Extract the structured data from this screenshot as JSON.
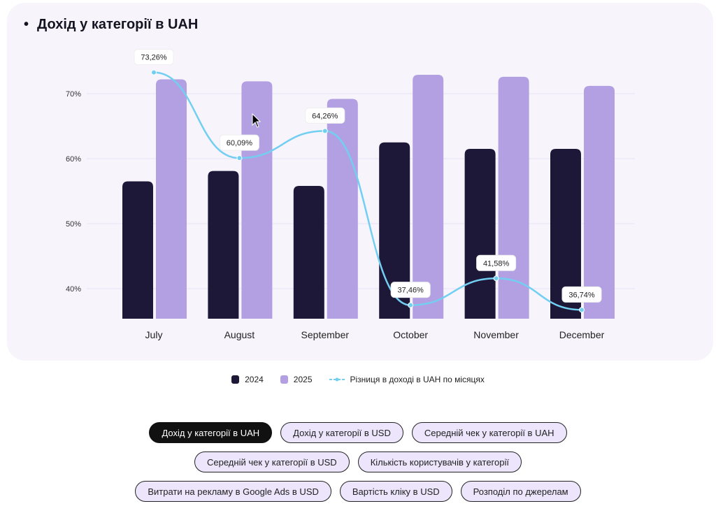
{
  "chart_data": {
    "type": "bar",
    "title": "Дохід у категорії в UAH",
    "categories": [
      "July",
      "August",
      "September",
      "October",
      "November",
      "December"
    ],
    "series": [
      {
        "name": "2024",
        "type": "bar",
        "color": "#1e1838",
        "values": [
          56.5,
          58.1,
          55.8,
          62.5,
          61.5,
          61.5
        ]
      },
      {
        "name": "2025",
        "type": "bar",
        "color": "#b3a0e2",
        "values": [
          72.2,
          71.9,
          69.2,
          72.9,
          72.6,
          71.2
        ]
      },
      {
        "name": "Різниця в доході в UAH по місяцях",
        "type": "line",
        "color": "#72cff2",
        "values": [
          73.26,
          60.09,
          64.26,
          37.46,
          41.58,
          36.74
        ],
        "labels": [
          "73,26%",
          "60,09%",
          "64,26%",
          "37,46%",
          "41,58%",
          "36,74%"
        ]
      }
    ],
    "yticks": [
      {
        "v": 70,
        "label": "70%"
      },
      {
        "v": 60,
        "label": "60%"
      },
      {
        "v": 50,
        "label": "50%"
      },
      {
        "v": 40,
        "label": "40%"
      }
    ],
    "ylim": [
      35.4,
      75
    ],
    "grid": true,
    "legend_position": "bottom"
  },
  "legend": [
    "2024",
    "2025",
    "Різниця в доході в UAH по місяцях"
  ],
  "buttons": [
    [
      "Дохід у категорії в UAH",
      "Дохід у категорії в USD",
      "Середній чек у категорії в UAH"
    ],
    [
      "Середній чек у категорії в USD",
      "Кількість користувачів у категорії"
    ],
    [
      "Витрати на рекламу в Google Ads в USD",
      "Вартість кліку в USD",
      "Розподіл по джерелам"
    ]
  ]
}
